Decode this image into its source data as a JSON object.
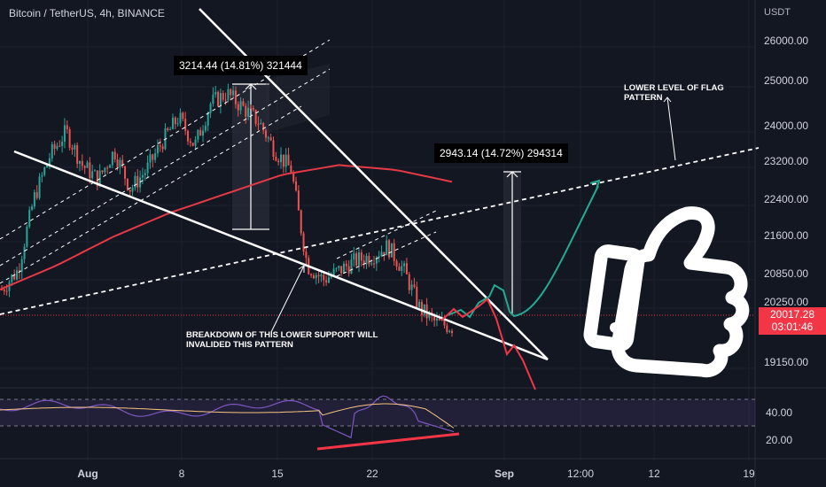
{
  "header": {
    "symbol_line": "Bitcoin / TetherUS, 4h, BINANCE",
    "currency": "USDT"
  },
  "price_axis": [
    "26000.00",
    "25000.00",
    "24000.00",
    "23200.00",
    "22400.00",
    "21600.00",
    "20850.00",
    "20250.00",
    "19150.00"
  ],
  "current_price": {
    "value": "20017.28",
    "countdown": "03:01:46"
  },
  "rsi_axis": [
    "40.00",
    "20.00"
  ],
  "time_axis": [
    "Aug",
    "8",
    "15",
    "22",
    "Sep",
    "12:00",
    "12",
    "19"
  ],
  "measure_labels": {
    "upper": "3214.44 (14.81%) 321444",
    "lower": "2943.14 (14.72%) 294314"
  },
  "annotations": {
    "flag_level": "LOWER LEVEL OF FLAG\nPATTERN",
    "support_break": "BREAKDOWN OF THIS LOWER SUPPORT WILL\nINVALIDED THIS PATTERN"
  },
  "colors": {
    "background": "#131722",
    "up": "#26a69a",
    "down": "#ef5350",
    "ma": "#e53945",
    "rsi": "#7e57c2",
    "rsi_ma": "#f7c680",
    "projection_up": "#22ab94",
    "projection_down": "#f23645",
    "annotation": "#ffffff"
  },
  "icons": {
    "overlay": "thumbs-up-icon"
  },
  "chart_data": {
    "type": "candlestick",
    "title": "Bitcoin / TetherUS, 4h, BINANCE",
    "ylim": [
      19150,
      26000
    ],
    "x": [
      "Aug",
      "8",
      "15",
      "22",
      "Sep",
      "12:00",
      "12",
      "19"
    ],
    "close_path": [
      20800,
      21200,
      22700,
      23600,
      24100,
      23400,
      23100,
      23700,
      22900,
      23300,
      23900,
      24400,
      23800,
      24700,
      24900,
      24600,
      24300,
      23700,
      23300,
      21300,
      21000,
      21200,
      21400,
      21500,
      21700,
      21200,
      20400,
      20100,
      20017
    ],
    "current_price": 20017.28,
    "moving_average": [
      20800,
      21300,
      21900,
      22400,
      22800,
      23200,
      23400,
      23300,
      23050
    ],
    "measurements": [
      {
        "label": "3214.44 (14.81%) 321444",
        "change": 3214.44,
        "percent": 14.81
      },
      {
        "label": "2943.14 (14.72%) 294314",
        "change": 2943.14,
        "percent": 14.72
      }
    ],
    "rsi": {
      "ylim": [
        10,
        70
      ],
      "levels": [
        30,
        50
      ],
      "ticks": [
        40,
        20
      ]
    }
  }
}
